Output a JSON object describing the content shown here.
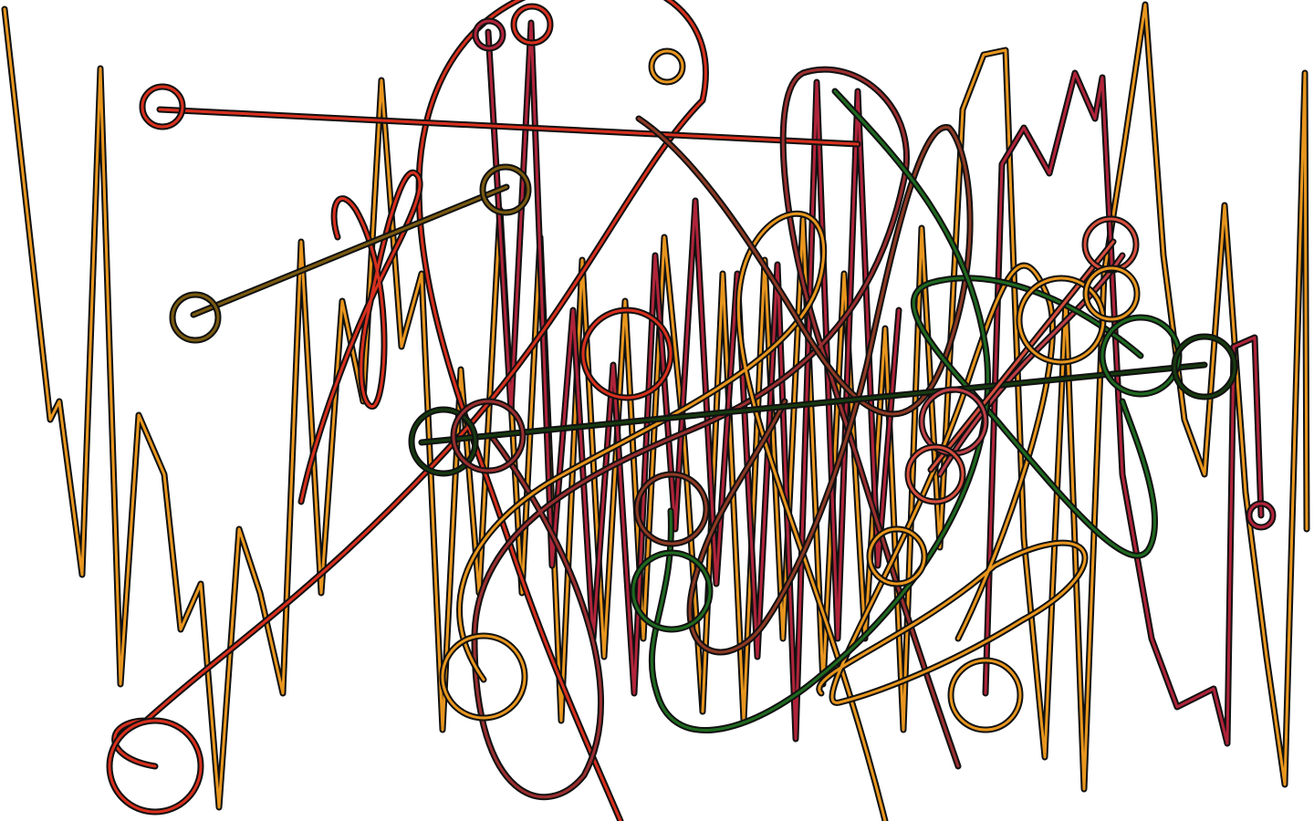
{
  "canvas": {
    "background": "#ffffff"
  },
  "palette": {
    "outline": "#111111",
    "orange": "#e8961e",
    "crimson": "#b0243a",
    "red": "#d8301e",
    "olive": "#7a5a10",
    "maroon": "#9c2f30",
    "salmon": "#d8503e",
    "green": "#1f6a20",
    "dark_green": "#173a10",
    "rust": "#8e3a24",
    "rose": "#c04048"
  },
  "drawing": {
    "strokes": [
      {
        "name": "orange-zigzag-left",
        "color": "orange"
      },
      {
        "name": "orange-zigzag-right",
        "color": "orange"
      },
      {
        "name": "crimson-zigzag-center",
        "color": "crimson"
      },
      {
        "name": "crimson-zigzag-right",
        "color": "crimson"
      },
      {
        "name": "red-long-loop",
        "color": "red"
      },
      {
        "name": "red-vertical-loop",
        "color": "red"
      },
      {
        "name": "red-connector-top",
        "color": "red"
      },
      {
        "name": "olive-connector",
        "color": "olive"
      },
      {
        "name": "maroon-loop-center",
        "color": "maroon"
      },
      {
        "name": "orange-big-loop",
        "color": "orange"
      },
      {
        "name": "orange-curl-lower",
        "color": "orange"
      },
      {
        "name": "rust-scribble",
        "color": "rust"
      },
      {
        "name": "rose-scribble",
        "color": "rose"
      },
      {
        "name": "green-loop",
        "color": "green"
      },
      {
        "name": "green-diagonal",
        "color": "green"
      },
      {
        "name": "dark-green-connector",
        "color": "dark_green"
      },
      {
        "name": "salmon-connector",
        "color": "salmon"
      }
    ],
    "rings": [
      {
        "name": "ring-top-left",
        "color": "red"
      },
      {
        "name": "ring-olive-upper",
        "color": "olive"
      },
      {
        "name": "ring-olive-left",
        "color": "olive"
      },
      {
        "name": "ring-crimson-top-a",
        "color": "crimson"
      },
      {
        "name": "ring-crimson-top-b",
        "color": "red"
      },
      {
        "name": "ring-orange-top",
        "color": "orange"
      },
      {
        "name": "ring-red-mid",
        "color": "red"
      },
      {
        "name": "ring-dark-green-left",
        "color": "dark_green"
      },
      {
        "name": "ring-maroon-left",
        "color": "maroon"
      },
      {
        "name": "ring-red-bottom-left",
        "color": "red"
      },
      {
        "name": "ring-orange-bottom",
        "color": "orange"
      },
      {
        "name": "ring-rust-mid",
        "color": "rust"
      },
      {
        "name": "ring-green-mid",
        "color": "green"
      },
      {
        "name": "ring-orange-right-a",
        "color": "orange"
      },
      {
        "name": "ring-salmon-right",
        "color": "salmon"
      },
      {
        "name": "ring-green-right",
        "color": "green"
      },
      {
        "name": "ring-dark-green-right",
        "color": "dark_green"
      },
      {
        "name": "ring-rose-lower",
        "color": "rose"
      },
      {
        "name": "ring-salmon-lower",
        "color": "salmon"
      },
      {
        "name": "ring-orange-lower",
        "color": "orange"
      },
      {
        "name": "ring-crimson-right-edge",
        "color": "crimson"
      },
      {
        "name": "ring-orange-right-edge",
        "color": "orange"
      },
      {
        "name": "ring-orange-corner",
        "color": "orange"
      }
    ]
  }
}
